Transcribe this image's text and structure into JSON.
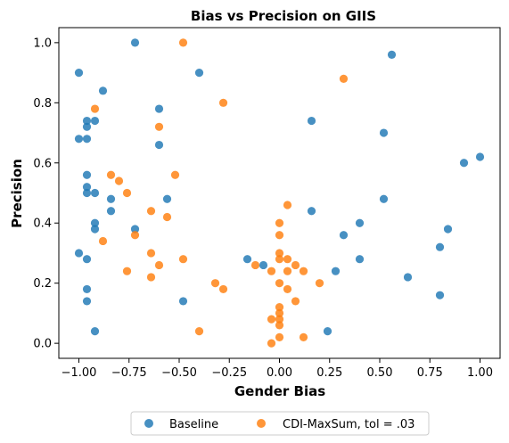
{
  "chart_data": {
    "type": "scatter",
    "title": "Bias vs Precision on GIIS",
    "xlabel": "Gender Bias",
    "ylabel": "Precision",
    "xlim": [
      -1.1,
      1.1
    ],
    "ylim": [
      -0.05,
      1.05
    ],
    "xticks": [
      "−1.00",
      "−0.75",
      "−0.50",
      "−0.25",
      "0.00",
      "0.25",
      "0.50",
      "0.75",
      "1.00"
    ],
    "xtick_values": [
      -1.0,
      -0.75,
      -0.5,
      -0.25,
      0.0,
      0.25,
      0.5,
      0.75,
      1.0
    ],
    "yticks": [
      "0.0",
      "0.2",
      "0.4",
      "0.6",
      "0.8",
      "1.0"
    ],
    "ytick_values": [
      0.0,
      0.2,
      0.4,
      0.6,
      0.8,
      1.0
    ],
    "grid": false,
    "legend_position": "bottom-center-outside",
    "series": [
      {
        "name": "Baseline",
        "color": "#1f77b4",
        "points": [
          [
            -1.0,
            0.9
          ],
          [
            -0.72,
            1.0
          ],
          [
            -0.4,
            0.9
          ],
          [
            0.56,
            0.96
          ],
          [
            -0.88,
            0.84
          ],
          [
            -0.6,
            0.78
          ],
          [
            -0.96,
            0.74
          ],
          [
            -0.92,
            0.74
          ],
          [
            0.16,
            0.74
          ],
          [
            -0.96,
            0.72
          ],
          [
            -1.0,
            0.68
          ],
          [
            -0.96,
            0.68
          ],
          [
            0.52,
            0.7
          ],
          [
            -0.6,
            0.66
          ],
          [
            0.92,
            0.6
          ],
          [
            1.0,
            0.62
          ],
          [
            -0.96,
            0.56
          ],
          [
            -0.96,
            0.52
          ],
          [
            -0.96,
            0.5
          ],
          [
            -0.92,
            0.5
          ],
          [
            -0.84,
            0.48
          ],
          [
            -0.56,
            0.48
          ],
          [
            0.52,
            0.48
          ],
          [
            -0.84,
            0.44
          ],
          [
            0.16,
            0.44
          ],
          [
            -0.92,
            0.4
          ],
          [
            0.4,
            0.4
          ],
          [
            -0.92,
            0.38
          ],
          [
            -0.72,
            0.38
          ],
          [
            0.84,
            0.38
          ],
          [
            0.32,
            0.36
          ],
          [
            0.8,
            0.32
          ],
          [
            -1.0,
            0.3
          ],
          [
            -0.96,
            0.28
          ],
          [
            -0.16,
            0.28
          ],
          [
            0.4,
            0.28
          ],
          [
            -0.08,
            0.26
          ],
          [
            0.28,
            0.24
          ],
          [
            0.64,
            0.22
          ],
          [
            -0.96,
            0.18
          ],
          [
            0.8,
            0.16
          ],
          [
            -0.96,
            0.14
          ],
          [
            -0.48,
            0.14
          ],
          [
            -0.92,
            0.04
          ],
          [
            0.24,
            0.04
          ]
        ]
      },
      {
        "name": "CDI-MaxSum, tol = .03",
        "color": "#ff7f0e",
        "points": [
          [
            -0.48,
            1.0
          ],
          [
            0.32,
            0.88
          ],
          [
            -0.92,
            0.78
          ],
          [
            -0.28,
            0.8
          ],
          [
            -0.6,
            0.72
          ],
          [
            -0.84,
            0.56
          ],
          [
            -0.8,
            0.54
          ],
          [
            -0.52,
            0.56
          ],
          [
            -0.76,
            0.5
          ],
          [
            0.04,
            0.46
          ],
          [
            -0.64,
            0.44
          ],
          [
            -0.56,
            0.42
          ],
          [
            0.0,
            0.4
          ],
          [
            -0.72,
            0.36
          ],
          [
            0.0,
            0.36
          ],
          [
            -0.88,
            0.34
          ],
          [
            -0.64,
            0.3
          ],
          [
            0.0,
            0.3
          ],
          [
            -0.6,
            0.26
          ],
          [
            -0.48,
            0.28
          ],
          [
            0.0,
            0.28
          ],
          [
            0.04,
            0.28
          ],
          [
            -0.12,
            0.26
          ],
          [
            0.08,
            0.26
          ],
          [
            -0.76,
            0.24
          ],
          [
            -0.04,
            0.24
          ],
          [
            0.04,
            0.24
          ],
          [
            0.12,
            0.24
          ],
          [
            -0.64,
            0.22
          ],
          [
            -0.32,
            0.2
          ],
          [
            0.0,
            0.2
          ],
          [
            0.2,
            0.2
          ],
          [
            -0.28,
            0.18
          ],
          [
            0.04,
            0.18
          ],
          [
            0.08,
            0.14
          ],
          [
            0.0,
            0.12
          ],
          [
            0.0,
            0.1
          ],
          [
            -0.04,
            0.08
          ],
          [
            0.0,
            0.08
          ],
          [
            0.0,
            0.06
          ],
          [
            -0.4,
            0.04
          ],
          [
            0.0,
            0.02
          ],
          [
            0.12,
            0.02
          ],
          [
            -0.04,
            0.0
          ]
        ]
      }
    ]
  }
}
